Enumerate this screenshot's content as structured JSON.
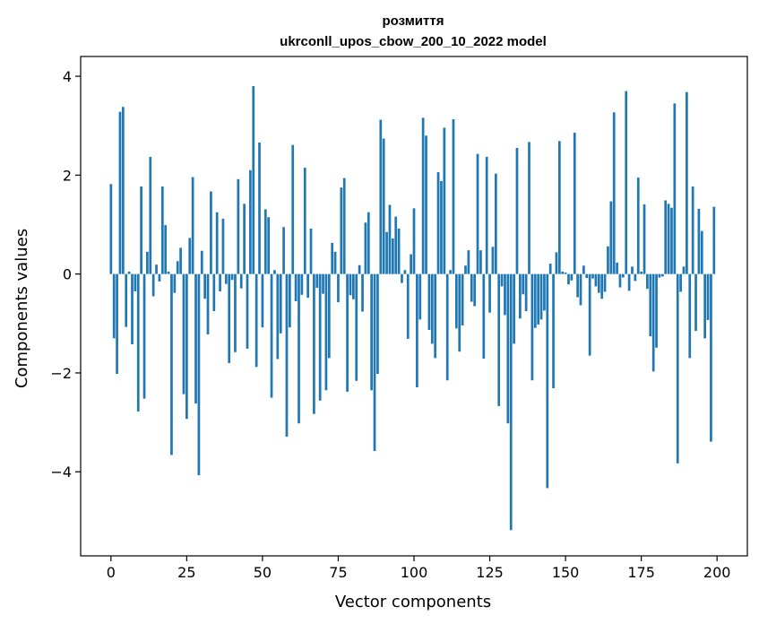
{
  "chart_data": {
    "type": "bar",
    "title_line1": "розмиття",
    "title_line2": "ukrconll_upos_cbow_200_10_2022 model",
    "xlabel": "Vector components",
    "ylabel": "Components values",
    "xlim": [
      -10,
      210
    ],
    "ylim": [
      -5.7,
      4.4
    ],
    "xticks": [
      0,
      25,
      50,
      75,
      100,
      125,
      150,
      175,
      200
    ],
    "xtick_labels": [
      "0",
      "25",
      "50",
      "75",
      "100",
      "125",
      "150",
      "175",
      "200"
    ],
    "yticks": [
      -4,
      -2,
      0,
      2,
      4
    ],
    "ytick_labels": [
      "−4",
      "−2",
      "0",
      "2",
      "4"
    ],
    "bar_color": "#1f77b4",
    "grid": false,
    "values": [
      1.82,
      -1.3,
      -2.02,
      3.28,
      3.38,
      -1.07,
      0.05,
      -1.42,
      -0.35,
      -2.78,
      1.77,
      -2.52,
      0.45,
      2.37,
      -0.45,
      0.19,
      -0.15,
      1.77,
      0.99,
      0.05,
      -3.66,
      -0.38,
      0.26,
      0.53,
      -2.43,
      -2.93,
      0.73,
      1.96,
      -2.62,
      -4.07,
      0.47,
      -0.5,
      -1.22,
      1.67,
      -0.75,
      1.25,
      -0.35,
      1.12,
      -0.2,
      -1.8,
      -0.12,
      -1.58,
      1.92,
      -0.29,
      1.42,
      -1.51,
      2.1,
      3.8,
      -1.88,
      2.66,
      -1.08,
      1.31,
      1.15,
      -2.5,
      0.08,
      -1.72,
      -1.2,
      0.95,
      -3.29,
      -1.08,
      2.61,
      -0.55,
      -3.02,
      -0.42,
      2.15,
      -0.48,
      0.92,
      -2.83,
      -0.28,
      -2.56,
      -0.4,
      -2.35,
      -1.7,
      0.63,
      0.45,
      -0.57,
      1.75,
      1.94,
      -2.38,
      -0.43,
      -0.51,
      -2.16,
      0.18,
      -0.76,
      1.04,
      1.25,
      -2.35,
      -3.58,
      -2.02,
      3.12,
      2.74,
      0.85,
      1.4,
      0.72,
      1.16,
      0.92,
      -0.18,
      0.08,
      -1.31,
      0.4,
      1.33,
      -2.29,
      -0.92,
      3.16,
      2.8,
      -1.13,
      -1.41,
      -1.7,
      2.06,
      1.88,
      2.96,
      -2.15,
      0.08,
      3.13,
      -1.1,
      -1.57,
      -1.04,
      0.17,
      0.48,
      -0.56,
      -0.65,
      2.43,
      0.48,
      -1.71,
      2.37,
      -0.78,
      0.55,
      2.03,
      -2.67,
      -0.25,
      -0.83,
      -3.02,
      -5.18,
      -1.41,
      2.55,
      -0.9,
      -0.41,
      -0.75,
      2.67,
      -2.15,
      -1.09,
      -1.02,
      -0.92,
      -0.74,
      -4.33,
      0.21,
      -2.31,
      0.44,
      2.69,
      0.05,
      0.03,
      -0.21,
      -0.13,
      2.86,
      -0.47,
      -0.63,
      0.17,
      -0.08,
      -1.65,
      -0.09,
      -0.25,
      -0.38,
      -0.5,
      -0.36,
      0.56,
      1.47,
      3.27,
      0.23,
      -0.27,
      -0.07,
      3.7,
      -0.34,
      0.15,
      -0.14,
      1.95,
      0.05,
      1.41,
      -0.3,
      -1.26,
      -1.97,
      -1.49,
      -0.07,
      -0.05,
      1.49,
      1.42,
      1.34,
      3.45,
      -3.83,
      -0.36,
      0.15,
      3.68,
      -1.7,
      1.77,
      -1.15,
      1.32,
      0.87,
      -1.3,
      -0.93,
      -3.39,
      1.36
    ]
  }
}
